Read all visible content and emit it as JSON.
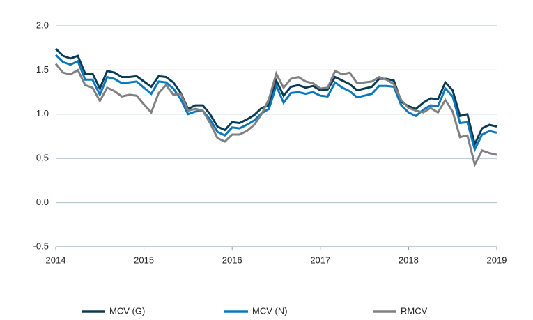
{
  "chart_data": {
    "type": "line",
    "x": [
      2014,
      2014.083,
      2014.167,
      2014.25,
      2014.333,
      2014.417,
      2014.5,
      2014.583,
      2014.667,
      2014.75,
      2014.833,
      2014.917,
      2015,
      2015.083,
      2015.167,
      2015.25,
      2015.333,
      2015.417,
      2015.5,
      2015.583,
      2015.667,
      2015.75,
      2015.833,
      2015.917,
      2016,
      2016.083,
      2016.167,
      2016.25,
      2016.333,
      2016.417,
      2016.5,
      2016.583,
      2016.667,
      2016.75,
      2016.833,
      2016.917,
      2017,
      2017.083,
      2017.167,
      2017.25,
      2017.333,
      2017.417,
      2017.5,
      2017.583,
      2017.667,
      2017.75,
      2017.833,
      2017.917,
      2018,
      2018.083,
      2018.167,
      2018.25,
      2018.333,
      2018.417,
      2018.5,
      2018.583,
      2018.667,
      2018.75,
      2018.833,
      2018.917,
      2019
    ],
    "series": [
      {
        "name": "MCV (G)",
        "color": "#0b3a53",
        "values": [
          1.74,
          1.66,
          1.63,
          1.66,
          1.46,
          1.46,
          1.29,
          1.49,
          1.47,
          1.42,
          1.42,
          1.43,
          1.37,
          1.31,
          1.43,
          1.42,
          1.36,
          1.24,
          1.06,
          1.1,
          1.1,
          1.0,
          0.86,
          0.82,
          0.91,
          0.9,
          0.94,
          0.99,
          1.07,
          1.1,
          1.38,
          1.21,
          1.31,
          1.33,
          1.3,
          1.32,
          1.27,
          1.28,
          1.42,
          1.38,
          1.34,
          1.27,
          1.29,
          1.31,
          1.4,
          1.4,
          1.38,
          1.14,
          1.09,
          1.06,
          1.13,
          1.18,
          1.17,
          1.36,
          1.27,
          0.98,
          1.0,
          0.66,
          0.84,
          0.88,
          0.86
        ]
      },
      {
        "name": "MCV (N)",
        "color": "#0a78be",
        "values": [
          1.67,
          1.59,
          1.56,
          1.6,
          1.39,
          1.39,
          1.22,
          1.42,
          1.4,
          1.35,
          1.36,
          1.37,
          1.3,
          1.23,
          1.37,
          1.36,
          1.29,
          1.17,
          1.0,
          1.03,
          1.04,
          0.94,
          0.8,
          0.76,
          0.85,
          0.84,
          0.88,
          0.93,
          1.01,
          1.06,
          1.32,
          1.13,
          1.24,
          1.25,
          1.23,
          1.25,
          1.21,
          1.2,
          1.36,
          1.3,
          1.26,
          1.19,
          1.21,
          1.23,
          1.32,
          1.32,
          1.31,
          1.1,
          1.02,
          0.98,
          1.05,
          1.1,
          1.09,
          1.29,
          1.2,
          0.9,
          0.91,
          0.6,
          0.77,
          0.81,
          0.79
        ]
      },
      {
        "name": "RMCV",
        "color": "#808080",
        "values": [
          1.57,
          1.47,
          1.45,
          1.5,
          1.33,
          1.3,
          1.15,
          1.3,
          1.26,
          1.2,
          1.22,
          1.21,
          1.11,
          1.02,
          1.24,
          1.33,
          1.22,
          1.23,
          1.04,
          1.06,
          1.04,
          0.9,
          0.73,
          0.69,
          0.77,
          0.77,
          0.81,
          0.88,
          1.0,
          1.17,
          1.46,
          1.3,
          1.4,
          1.42,
          1.37,
          1.35,
          1.29,
          1.3,
          1.49,
          1.45,
          1.47,
          1.35,
          1.36,
          1.37,
          1.42,
          1.39,
          1.34,
          1.16,
          1.07,
          1.04,
          1.02,
          1.07,
          1.02,
          1.16,
          1.03,
          0.74,
          0.76,
          0.43,
          0.59,
          0.56,
          0.54
        ]
      }
    ],
    "xlim": [
      2014,
      2019
    ],
    "xticks": [
      2014,
      2015,
      2016,
      2017,
      2018,
      2019
    ],
    "ylim": [
      -0.5,
      2.0
    ],
    "yticks": [
      {
        "value": -0.5,
        "label": "-0.5"
      },
      {
        "value": 0,
        "label": "0.0"
      },
      {
        "value": 0.5,
        "label": "0.5"
      },
      {
        "value": 1,
        "label": "1.0"
      },
      {
        "value": 1.5,
        "label": "1.5"
      },
      {
        "value": 2,
        "label": "2.0"
      }
    ],
    "grid": true,
    "legend": "bottom"
  }
}
